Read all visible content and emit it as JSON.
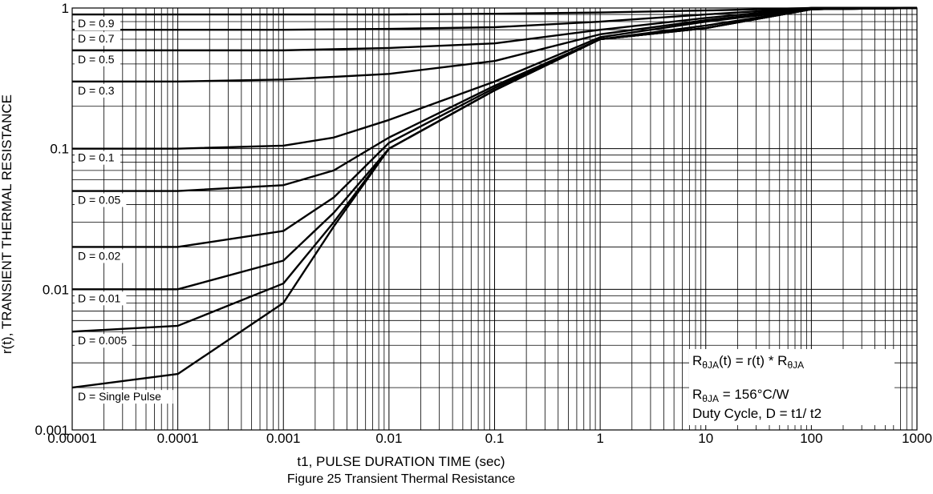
{
  "chart_data": {
    "type": "line",
    "title": "Figure 25 Transient Thermal Resistance",
    "xlabel": "t1, PULSE DURATION TIME (sec)",
    "ylabel": "r(t), TRANSIENT THERMAL RESISTANCE",
    "x_scale": "log",
    "y_scale": "log",
    "xlim": [
      1e-05,
      1000
    ],
    "ylim": [
      0.001,
      1
    ],
    "grid": true,
    "x_tick_labels": [
      "0.00001",
      "0.0001",
      "0.001",
      "0.01",
      "0.1",
      "1",
      "10",
      "100",
      "1000"
    ],
    "y_tick_labels": [
      "0.001",
      "0.01",
      "0.1",
      "1"
    ],
    "series": [
      {
        "name": "D = 0.9",
        "x": [
          1e-05,
          0.0001,
          0.001,
          0.01,
          0.1,
          1,
          10,
          100,
          1000
        ],
        "values": [
          0.9,
          0.9,
          0.9,
          0.9,
          0.91,
          0.93,
          0.96,
          1.0,
          1.0
        ]
      },
      {
        "name": "D = 0.7",
        "x": [
          1e-05,
          0.0001,
          0.001,
          0.01,
          0.1,
          1,
          10,
          100,
          1000
        ],
        "values": [
          0.7,
          0.7,
          0.7,
          0.71,
          0.73,
          0.8,
          0.9,
          1.0,
          1.0
        ]
      },
      {
        "name": "D = 0.5",
        "x": [
          1e-05,
          0.0001,
          0.001,
          0.01,
          0.1,
          1,
          10,
          100,
          1000
        ],
        "values": [
          0.5,
          0.5,
          0.5,
          0.52,
          0.56,
          0.7,
          0.85,
          1.0,
          1.0
        ]
      },
      {
        "name": "D = 0.3",
        "x": [
          1e-05,
          0.0001,
          0.001,
          0.01,
          0.1,
          1,
          10,
          100,
          1000
        ],
        "values": [
          0.3,
          0.3,
          0.31,
          0.34,
          0.42,
          0.65,
          0.82,
          0.98,
          1.0
        ]
      },
      {
        "name": "D = 0.1",
        "x": [
          1e-05,
          0.0001,
          0.001,
          0.003,
          0.01,
          0.1,
          1,
          10,
          100,
          1000
        ],
        "values": [
          0.1,
          0.1,
          0.105,
          0.12,
          0.16,
          0.3,
          0.62,
          0.8,
          0.98,
          1.0
        ]
      },
      {
        "name": "D = 0.05",
        "x": [
          1e-05,
          0.0001,
          0.001,
          0.003,
          0.01,
          0.1,
          1,
          10,
          100,
          1000
        ],
        "values": [
          0.05,
          0.05,
          0.055,
          0.07,
          0.12,
          0.28,
          0.6,
          0.75,
          0.98,
          1.0
        ]
      },
      {
        "name": "D = 0.02",
        "x": [
          1e-05,
          0.0001,
          0.001,
          0.003,
          0.01,
          0.1,
          1,
          10,
          100,
          1000
        ],
        "values": [
          0.02,
          0.02,
          0.026,
          0.045,
          0.11,
          0.27,
          0.6,
          0.72,
          0.98,
          1.0
        ]
      },
      {
        "name": "D = 0.01",
        "x": [
          1e-05,
          0.0001,
          0.001,
          0.003,
          0.01,
          0.1,
          1,
          10,
          100,
          1000
        ],
        "values": [
          0.01,
          0.01,
          0.016,
          0.035,
          0.1,
          0.26,
          0.6,
          0.72,
          0.98,
          1.0
        ]
      },
      {
        "name": "D = 0.005",
        "x": [
          1e-05,
          0.0001,
          0.001,
          0.003,
          0.01,
          0.1,
          1,
          10,
          100,
          1000
        ],
        "values": [
          0.005,
          0.0055,
          0.011,
          0.03,
          0.1,
          0.26,
          0.6,
          0.72,
          0.98,
          1.0
        ]
      },
      {
        "name": "D = Single Pulse",
        "x": [
          1e-05,
          0.0001,
          0.001,
          0.003,
          0.01,
          0.1,
          1,
          10,
          100,
          1000
        ],
        "values": [
          0.002,
          0.0025,
          0.008,
          0.028,
          0.1,
          0.26,
          0.6,
          0.72,
          0.98,
          1.0
        ]
      }
    ],
    "curve_labels": [
      "D = 0.9",
      "D = 0.7",
      "D = 0.5",
      "D = 0.3",
      "D = 0.1",
      "D = 0.05",
      "D = 0.02",
      "D = 0.01",
      "D = 0.005",
      "D = Single Pulse"
    ]
  },
  "annotation": {
    "line1_prefix": "R",
    "line1_sub1": "θJA",
    "line1_mid": "(t) = r(t) * R",
    "line1_sub2": "θJA",
    "line2_prefix": "R",
    "line2_sub": "θJA",
    "line2_rest": " = 156°C/W",
    "line3": "Duty Cycle, D = t1/ t2"
  }
}
